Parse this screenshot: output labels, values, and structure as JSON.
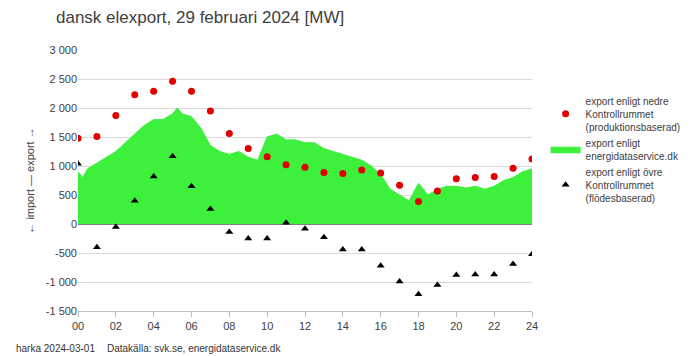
{
  "chart_data": {
    "type": "line",
    "title": "dansk elexport, 29 februari 2024 [MW]",
    "y_label": "← import — export →",
    "annotations": [
      "harka 2024-03-01",
      "Datakälla: svk.se, energidataservice.dk"
    ],
    "xlim": [
      0,
      24
    ],
    "xticks": [
      {
        "value": 0,
        "label": "00"
      },
      {
        "value": 2,
        "label": "02"
      },
      {
        "value": 4,
        "label": "04"
      },
      {
        "value": 6,
        "label": "06"
      },
      {
        "value": 8,
        "label": "08"
      },
      {
        "value": 10,
        "label": "10"
      },
      {
        "value": 12,
        "label": "12"
      },
      {
        "value": 14,
        "label": "14"
      },
      {
        "value": 16,
        "label": "16"
      },
      {
        "value": 18,
        "label": "18"
      },
      {
        "value": 20,
        "label": "20"
      },
      {
        "value": 22,
        "label": "22"
      },
      {
        "value": 24,
        "label": "24"
      }
    ],
    "ylim": [
      -1500,
      3000
    ],
    "yticks": [
      {
        "value": -1500,
        "label": "-1 500"
      },
      {
        "value": -1000,
        "label": "-1 000"
      },
      -500,
      0,
      500,
      {
        "value": 1000,
        "label": "1 000"
      },
      {
        "value": 1500,
        "label": "1 500"
      },
      {
        "value": 2000,
        "label": "2 000"
      },
      {
        "value": 2500,
        "label": "2 500"
      },
      {
        "value": 3000,
        "label": "3 000"
      }
    ],
    "grid": true,
    "legend": "right",
    "series": [
      {
        "name": "export enligt nedre Kontrollrummet (produktionsbaserad)",
        "type": "scatter",
        "marker": "circle",
        "color": "#e00000",
        "x": [
          0,
          1,
          2,
          3,
          4,
          5,
          6,
          7,
          8,
          9,
          10,
          11,
          12,
          13,
          14,
          15,
          16,
          17,
          18,
          19,
          20,
          21,
          22,
          23,
          24
        ],
        "values": [
          1480,
          1510,
          1870,
          2230,
          2290,
          2460,
          2290,
          1950,
          1560,
          1300,
          1160,
          1020,
          980,
          890,
          870,
          930,
          880,
          670,
          390,
          570,
          780,
          800,
          820,
          960,
          1120
        ]
      },
      {
        "name": "export enligt energidataservice.dk",
        "type": "area",
        "color": "#3cf03c",
        "x": [
          0,
          0.25,
          0.5,
          1,
          1.5,
          2,
          2.5,
          3,
          3.5,
          4,
          4.5,
          5,
          5.25,
          5.5,
          6,
          6.5,
          7,
          7.5,
          8,
          8.5,
          9,
          9.5,
          10,
          10.5,
          11,
          11.5,
          12,
          12.5,
          13,
          13.5,
          14,
          14.5,
          15,
          15.5,
          16,
          16.5,
          17,
          17.5,
          18,
          18.5,
          19,
          19.5,
          20,
          20.5,
          21,
          21.5,
          22,
          22.5,
          23,
          23.5,
          24
        ],
        "values": [
          900,
          800,
          950,
          1050,
          1150,
          1250,
          1400,
          1550,
          1700,
          1800,
          1800,
          1900,
          2000,
          1900,
          1850,
          1650,
          1350,
          1250,
          1200,
          1250,
          1150,
          1100,
          1500,
          1550,
          1450,
          1450,
          1400,
          1400,
          1300,
          1250,
          1200,
          1150,
          1100,
          1000,
          850,
          600,
          500,
          400,
          700,
          500,
          600,
          650,
          650,
          620,
          650,
          600,
          650,
          750,
          800,
          900,
          950
        ]
      },
      {
        "name": "export enligt övre Kontrollrummet (flödesbaserad)",
        "type": "scatter",
        "marker": "triangle-up",
        "color": "#000000",
        "x": [
          0,
          1,
          2,
          3,
          4,
          5,
          6,
          7,
          8,
          9,
          10,
          11,
          12,
          13,
          14,
          15,
          16,
          17,
          18,
          19,
          20,
          21,
          22,
          23,
          24
        ],
        "values": [
          1040,
          -400,
          -50,
          400,
          820,
          1170,
          650,
          260,
          -140,
          -250,
          -250,
          20,
          -80,
          -230,
          -440,
          -440,
          -720,
          -990,
          -1210,
          -1050,
          -880,
          -870,
          -870,
          -690,
          -520
        ]
      }
    ]
  }
}
